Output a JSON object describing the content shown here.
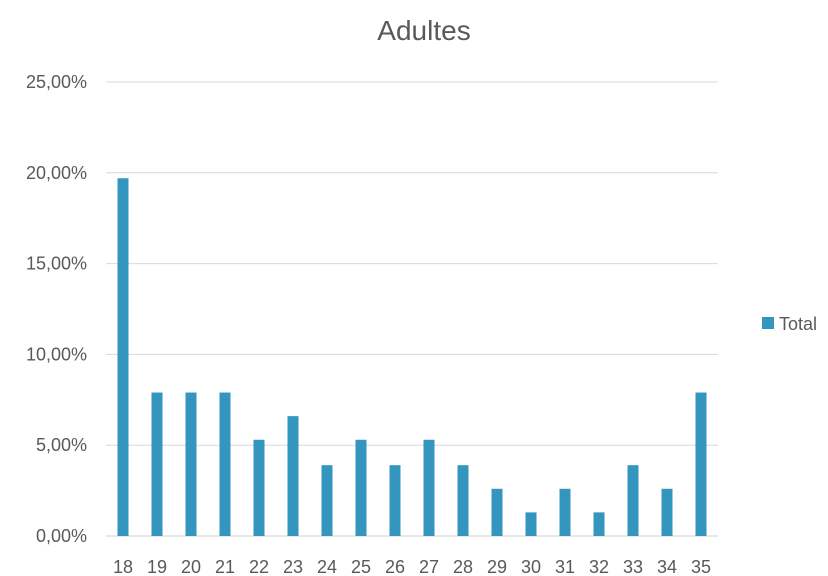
{
  "chart_data": {
    "type": "bar",
    "title": "Adultes",
    "xlabel": "",
    "ylabel": "",
    "categories": [
      "18",
      "19",
      "20",
      "21",
      "22",
      "23",
      "24",
      "25",
      "26",
      "27",
      "28",
      "29",
      "30",
      "31",
      "32",
      "33",
      "34",
      "35"
    ],
    "series": [
      {
        "name": "Total",
        "color": "#3496BE",
        "values": [
          0.197,
          0.079,
          0.079,
          0.079,
          0.053,
          0.066,
          0.039,
          0.053,
          0.039,
          0.053,
          0.039,
          0.026,
          0.013,
          0.026,
          0.013,
          0.039,
          0.026,
          0.079
        ]
      }
    ],
    "ylim": [
      0,
      0.25
    ],
    "yticks": [
      0,
      0.05,
      0.1,
      0.15,
      0.2,
      0.25
    ],
    "ytick_labels": [
      "0,00%",
      "5,00%",
      "10,00%",
      "15,00%",
      "20,00%",
      "25,00%"
    ],
    "grid": true,
    "legend_position": "right"
  }
}
